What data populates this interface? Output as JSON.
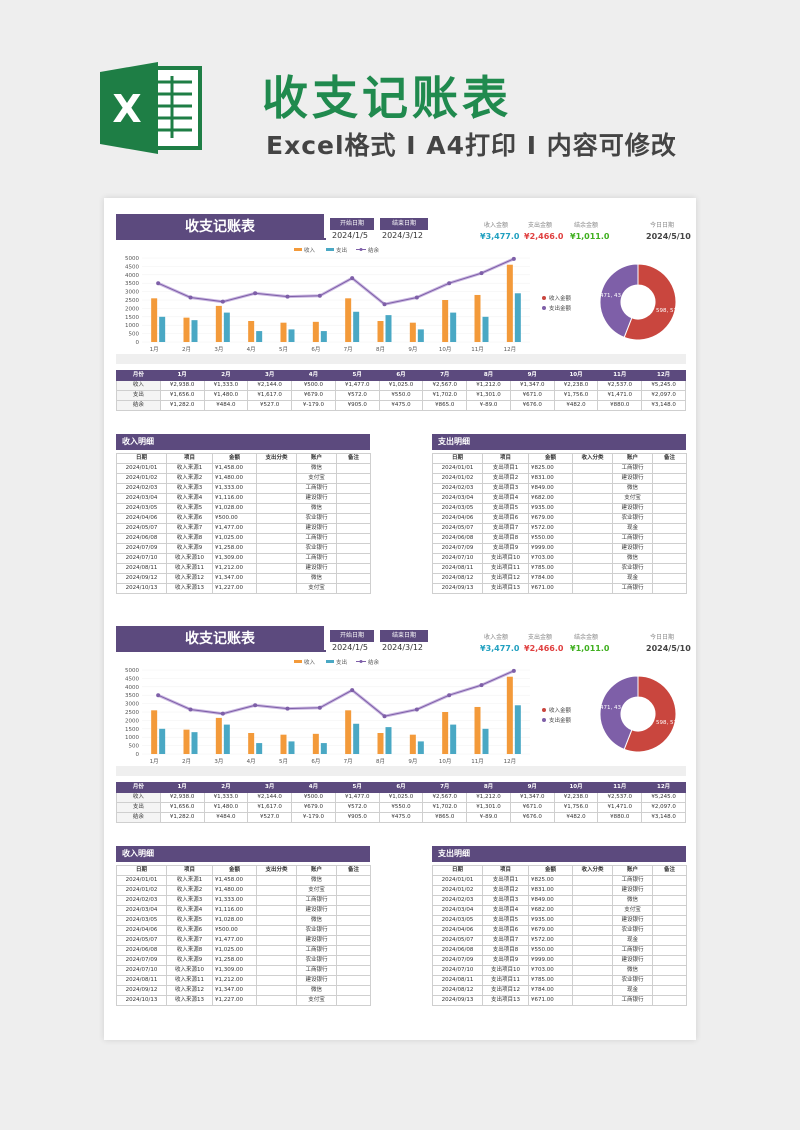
{
  "hero": {
    "logo_letter": "X",
    "title": "收支记账表",
    "subtitle": "Excel格式 I A4打印 I 内容可修改"
  },
  "sheet": {
    "title": "收支记账表",
    "start_label": "开始日期",
    "start_value": "2024/1/5",
    "end_label": "结束日期",
    "end_value": "2024/3/12",
    "stats": [
      {
        "label": "收入金额",
        "value": "¥3,477.0",
        "color": "#20a0c0"
      },
      {
        "label": "支出金额",
        "value": "¥2,466.0",
        "color": "#e04040"
      },
      {
        "label": "结余金额",
        "value": "¥1,011.0",
        "color": "#40b020"
      },
      {
        "label": "今日日期",
        "value": "2024/5/10",
        "color": "#444444"
      }
    ],
    "colors": {
      "income": "#f39a3a",
      "expense": "#4aa8c4",
      "balance": "#7e5fa8",
      "pie_income": "#c9463e",
      "pie_expense": "#7e5fa8",
      "purple": "#5c4a7e"
    },
    "chart_data": {
      "type": "bar",
      "categories": [
        "1月",
        "2月",
        "3月",
        "4月",
        "5月",
        "6月",
        "7月",
        "8月",
        "9月",
        "10月",
        "11月",
        "12月"
      ],
      "series": [
        {
          "name": "收入",
          "kind": "bar",
          "values": [
            2600,
            1450,
            2150,
            1250,
            1150,
            1200,
            2600,
            1250,
            1150,
            2500,
            2800,
            4600
          ]
        },
        {
          "name": "支出",
          "kind": "bar",
          "values": [
            1500,
            1300,
            1750,
            650,
            750,
            650,
            1800,
            1600,
            750,
            1750,
            1500,
            2900
          ]
        },
        {
          "name": "结余",
          "kind": "line",
          "values": [
            3500,
            2650,
            2400,
            2900,
            2700,
            2750,
            3800,
            2250,
            2650,
            3500,
            4100,
            4950
          ]
        }
      ],
      "yticks": [
        0,
        500,
        1000,
        1500,
        2000,
        2500,
        3000,
        3500,
        4000,
        4500,
        5000
      ],
      "ylim": [
        0,
        5000
      ]
    },
    "pie": {
      "legend": [
        "收入金额",
        "支出金额"
      ],
      "slice_values": [
        598,
        471
      ],
      "label_income": "598, 57",
      "label_expense": "471, 43"
    },
    "summary": {
      "headers": [
        "月份",
        "1月",
        "2月",
        "3月",
        "4月",
        "5月",
        "6月",
        "7月",
        "8月",
        "9月",
        "10月",
        "11月",
        "12月"
      ],
      "rows": [
        [
          "收入",
          "¥2,938.0",
          "¥1,333.0",
          "¥2,144.0",
          "¥500.0",
          "¥1,477.0",
          "¥1,025.0",
          "¥2,567.0",
          "¥1,212.0",
          "¥1,347.0",
          "¥2,238.0",
          "¥2,537.0",
          "¥5,245.0"
        ],
        [
          "支出",
          "¥1,656.0",
          "¥1,480.0",
          "¥1,617.0",
          "¥679.0",
          "¥572.0",
          "¥550.0",
          "¥1,702.0",
          "¥1,301.0",
          "¥671.0",
          "¥1,756.0",
          "¥1,471.0",
          "¥2,097.0"
        ],
        [
          "结余",
          "¥1,282.0",
          "¥484.0",
          "¥527.0",
          "¥-179.0",
          "¥905.0",
          "¥475.0",
          "¥865.0",
          "¥-89.0",
          "¥676.0",
          "¥482.0",
          "¥880.0",
          "¥3,148.0"
        ]
      ]
    },
    "income": {
      "title": "收入明细",
      "headers": [
        "日期",
        "项目",
        "金额",
        "支出分类",
        "账户",
        "备注"
      ],
      "rows": [
        [
          "2024/01/01",
          "收入来源1",
          "¥1,458.00",
          "",
          "微信",
          ""
        ],
        [
          "2024/01/02",
          "收入来源2",
          "¥1,480.00",
          "",
          "支付宝",
          ""
        ],
        [
          "2024/02/03",
          "收入来源3",
          "¥1,333.00",
          "",
          "工商银行",
          ""
        ],
        [
          "2024/03/04",
          "收入来源4",
          "¥1,116.00",
          "",
          "建设银行",
          ""
        ],
        [
          "2024/03/05",
          "收入来源5",
          "¥1,028.00",
          "",
          "微信",
          ""
        ],
        [
          "2024/04/06",
          "收入来源6",
          "¥500.00",
          "",
          "农业银行",
          ""
        ],
        [
          "2024/05/07",
          "收入来源7",
          "¥1,477.00",
          "",
          "建设银行",
          ""
        ],
        [
          "2024/06/08",
          "收入来源8",
          "¥1,025.00",
          "",
          "工商银行",
          ""
        ],
        [
          "2024/07/09",
          "收入来源9",
          "¥1,258.00",
          "",
          "农业银行",
          ""
        ],
        [
          "2024/07/10",
          "收入来源10",
          "¥1,309.00",
          "",
          "工商银行",
          ""
        ],
        [
          "2024/08/11",
          "收入来源11",
          "¥1,212.00",
          "",
          "建设银行",
          ""
        ],
        [
          "2024/09/12",
          "收入来源12",
          "¥1,347.00",
          "",
          "微信",
          ""
        ],
        [
          "2024/10/13",
          "收入来源13",
          "¥1,227.00",
          "",
          "支付宝",
          ""
        ]
      ]
    },
    "expense": {
      "title": "支出明细",
      "headers": [
        "日期",
        "项目",
        "金额",
        "收入分类",
        "账户",
        "备注"
      ],
      "rows": [
        [
          "2024/01/01",
          "支出项目1",
          "¥825.00",
          "",
          "工商银行",
          ""
        ],
        [
          "2024/01/02",
          "支出项目2",
          "¥831.00",
          "",
          "建设银行",
          ""
        ],
        [
          "2024/02/03",
          "支出项目3",
          "¥849.00",
          "",
          "微信",
          ""
        ],
        [
          "2024/03/04",
          "支出项目4",
          "¥682.00",
          "",
          "支付宝",
          ""
        ],
        [
          "2024/03/05",
          "支出项目5",
          "¥935.00",
          "",
          "建设银行",
          ""
        ],
        [
          "2024/04/06",
          "支出项目6",
          "¥679.00",
          "",
          "农业银行",
          ""
        ],
        [
          "2024/05/07",
          "支出项目7",
          "¥572.00",
          "",
          "现金",
          ""
        ],
        [
          "2024/06/08",
          "支出项目8",
          "¥550.00",
          "",
          "工商银行",
          ""
        ],
        [
          "2024/07/09",
          "支出项目9",
          "¥999.00",
          "",
          "建设银行",
          ""
        ],
        [
          "2024/07/10",
          "支出项目10",
          "¥703.00",
          "",
          "微信",
          ""
        ],
        [
          "2024/08/11",
          "支出项目11",
          "¥785.00",
          "",
          "农业银行",
          ""
        ],
        [
          "2024/08/12",
          "支出项目12",
          "¥784.00",
          "",
          "现金",
          ""
        ],
        [
          "2024/09/13",
          "支出项目13",
          "¥671.00",
          "",
          "工商银行",
          ""
        ]
      ]
    }
  }
}
